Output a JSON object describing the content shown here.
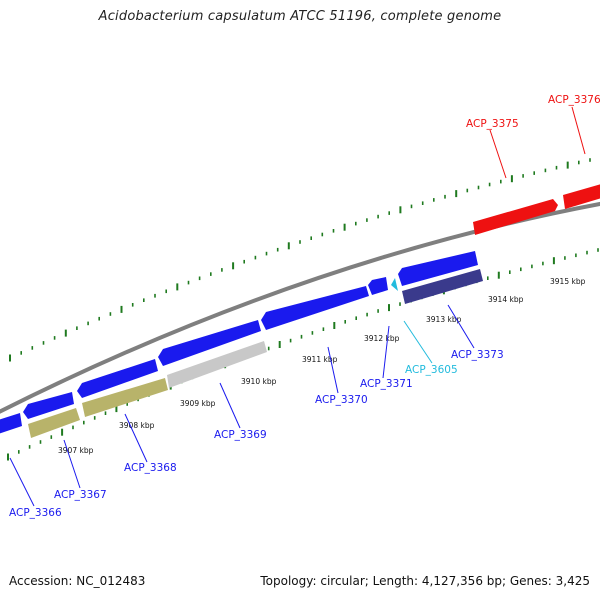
{
  "title": "Acidobacterium capsulatum ATCC 51196, complete genome",
  "footer": {
    "accession": "Accession: NC_012483",
    "topology": "Topology: circular; Length: 4,127,356 bp; Genes: 3,425"
  },
  "colors": {
    "backbone": "#7f7f7f",
    "ticks": "#1f7a1f",
    "forward_gene": "#ee1111",
    "reverse_gene": "#1a1aee",
    "khaki_gene": "#b8b36a",
    "gray_gene": "#c8c8c8",
    "navy_gene": "#3a3a8c",
    "cyan_gene": "#22bbdd"
  },
  "kbp_labels": [
    "3907 kbp",
    "3908 kbp",
    "3909 kbp",
    "3910 kbp",
    "3911 kbp",
    "3912 kbp",
    "3913 kbp",
    "3914 kbp",
    "3915 kbp"
  ],
  "genes": [
    {
      "name": "ACP_3366",
      "color": "#1a1aee"
    },
    {
      "name": "ACP_3367",
      "color": "#1a1aee"
    },
    {
      "name": "ACP_3368",
      "color": "#1a1aee"
    },
    {
      "name": "ACP_3369",
      "color": "#1a1aee"
    },
    {
      "name": "ACP_3370",
      "color": "#1a1aee"
    },
    {
      "name": "ACP_3371",
      "color": "#1a1aee"
    },
    {
      "name": "ACP_3605",
      "color": "#22bbdd"
    },
    {
      "name": "ACP_3373",
      "color": "#1a1aee"
    },
    {
      "name": "ACP_3375",
      "color": "#ee1111"
    },
    {
      "name": "ACP_3376",
      "color": "#ee1111"
    }
  ]
}
